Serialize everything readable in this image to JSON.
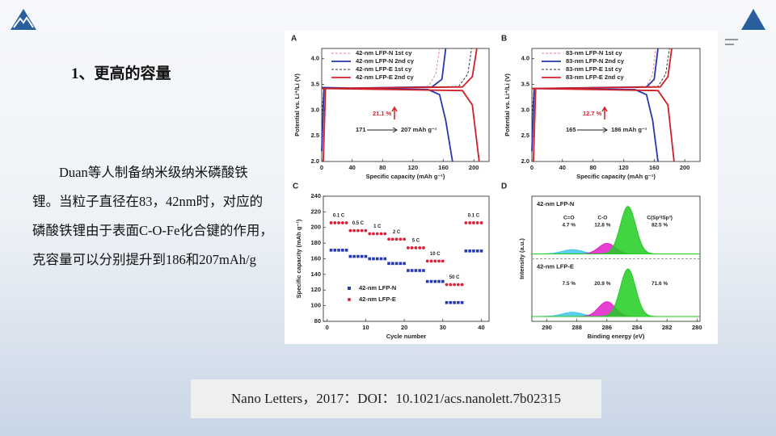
{
  "slide": {
    "title": "1、更高的容量",
    "body": "Duan等人制备纳米级纳米磷酸铁锂。当粒子直径在83，42nm时，对应的磷酸铁锂由于表面C-O-Fe化合键的作用，克容量可以分别提升到186和207mAh/g",
    "citation": "Nano Letters，2017：DOI：10.1021/acs.nanolett.7b02315"
  },
  "charts": [
    {
      "type": "line",
      "panel": "A",
      "xlabel": "Specific capacity (mAh g⁻¹)",
      "ylabel": "Potential vs. Li⁺/Li (V)",
      "xlim": [
        0,
        220
      ],
      "xticks": [
        0,
        40,
        80,
        120,
        160,
        200
      ],
      "ylim": [
        2.0,
        4.2
      ],
      "yticks": [
        {
          "value": 2,
          "label": "2.0"
        },
        2.5,
        {
          "value": 3,
          "label": "3.0"
        },
        3.5,
        {
          "value": 4,
          "label": "4.0"
        }
      ],
      "series": [
        {
          "name": "42-nm LFP-N 1st cy",
          "color": "#e8849c",
          "dashed": true,
          "x": [
            0,
            3,
            140,
            150,
            155
          ],
          "values": [
            2.9,
            3.42,
            3.46,
            3.7,
            4.2
          ]
        },
        {
          "name": "42-nm LFP-N 2nd cy",
          "color": "#2638b0",
          "dashed": false,
          "x": [
            0,
            3,
            145,
            158,
            163,
            null,
            0,
            140,
            155,
            163,
            172
          ],
          "values": [
            2.2,
            3.42,
            3.45,
            3.6,
            4.2,
            null,
            3.44,
            3.4,
            3.3,
            2.8,
            2.0
          ]
        },
        {
          "name": "42-nm LFP-E 1st cy",
          "color": "#333333",
          "dashed": true,
          "x": [
            0,
            3,
            180,
            192,
            197
          ],
          "values": [
            2.9,
            3.42,
            3.46,
            3.7,
            4.2
          ]
        },
        {
          "name": "42-nm LFP-E 2nd cy",
          "color": "#d0202a",
          "dashed": false,
          "x": [
            2,
            5,
            185,
            198,
            204,
            null,
            0,
            185,
            198,
            207
          ],
          "values": [
            2.0,
            3.42,
            3.45,
            3.65,
            4.2,
            null,
            3.42,
            3.38,
            3.1,
            2.0
          ]
        }
      ],
      "annotations": {
        "gain": "21.1 %",
        "from": "171",
        "to": "207 mAh g⁻¹"
      }
    },
    {
      "type": "line",
      "panel": "B",
      "xlabel": "Specific capacity (mAh g⁻¹)",
      "ylabel": "Potential vs. Li⁺/Li (V)",
      "xlim": [
        0,
        220
      ],
      "xticks": [
        0,
        40,
        80,
        120,
        160,
        200
      ],
      "ylim": [
        2.0,
        4.2
      ],
      "yticks": [
        {
          "value": 2,
          "label": "2.0"
        },
        2.5,
        {
          "value": 3,
          "label": "3.0"
        },
        3.5,
        {
          "value": 4,
          "label": "4.0"
        }
      ],
      "series": [
        {
          "name": "83-nm LFP-N 1st cy",
          "color": "#e8849c",
          "dashed": true,
          "x": [
            0,
            3,
            150,
            158,
            162
          ],
          "values": [
            2.9,
            3.42,
            3.46,
            3.7,
            4.2
          ]
        },
        {
          "name": "83-nm LFP-N 2nd cy",
          "color": "#2638b0",
          "dashed": false,
          "x": [
            0,
            3,
            150,
            160,
            165,
            null,
            0,
            135,
            150,
            158,
            165
          ],
          "values": [
            2.2,
            3.42,
            3.45,
            3.6,
            4.2,
            null,
            3.42,
            3.4,
            3.3,
            2.8,
            2.0
          ]
        },
        {
          "name": "83-nm LFP-E 1st cy",
          "color": "#333333",
          "dashed": true,
          "x": [
            0,
            3,
            165,
            175,
            180
          ],
          "values": [
            2.9,
            3.42,
            3.46,
            3.7,
            4.2
          ]
        },
        {
          "name": "83-nm LFP-E 2nd cy",
          "color": "#d0202a",
          "dashed": false,
          "x": [
            2,
            5,
            168,
            178,
            183,
            null,
            0,
            165,
            178,
            186
          ],
          "values": [
            2.0,
            3.42,
            3.45,
            3.65,
            4.2,
            null,
            3.42,
            3.38,
            3.1,
            2.0
          ]
        }
      ],
      "annotations": {
        "gain": "12.7 %",
        "from": "165",
        "to": "186 mAh g⁻¹"
      }
    },
    {
      "type": "scatter",
      "panel": "C",
      "xlabel": "Cycle number",
      "ylabel": "Specific capacity (mAh g⁻¹)",
      "xlim": [
        -1,
        42
      ],
      "xticks": [
        0,
        10,
        20,
        30,
        40
      ],
      "ylim": [
        80,
        240
      ],
      "yticks": [
        80,
        100,
        120,
        140,
        160,
        180,
        200,
        220,
        240
      ],
      "x": [
        1,
        2,
        3,
        4,
        5,
        6,
        7,
        8,
        9,
        10,
        11,
        12,
        13,
        14,
        15,
        16,
        17,
        18,
        19,
        20,
        21,
        22,
        23,
        24,
        25,
        26,
        27,
        28,
        29,
        30,
        31,
        32,
        33,
        34,
        35,
        36,
        37,
        38,
        39,
        40
      ],
      "series": [
        {
          "name": "42-nm LFP-N",
          "color": "#2638b0",
          "marker": "square",
          "values": [
            171,
            171,
            171,
            171,
            171,
            163,
            163,
            163,
            163,
            163,
            160,
            160,
            160,
            160,
            160,
            154,
            154,
            154,
            154,
            154,
            145,
            145,
            145,
            145,
            145,
            131,
            131,
            131,
            131,
            131,
            104,
            104,
            104,
            104,
            104,
            170,
            170,
            170,
            170,
            170
          ]
        },
        {
          "name": "42-nm LFP-E",
          "color": "#e0203a",
          "marker": "circle",
          "values": [
            206,
            206,
            206,
            206,
            206,
            196,
            196,
            196,
            196,
            196,
            192,
            192,
            192,
            192,
            192,
            185,
            185,
            185,
            185,
            185,
            174,
            174,
            174,
            174,
            174,
            157,
            157,
            157,
            157,
            157,
            127,
            127,
            127,
            127,
            127,
            206,
            206,
            206,
            206,
            206
          ]
        }
      ],
      "rate_labels": [
        "0.1 C",
        "0.5 C",
        "1 C",
        "2 C",
        "5 C",
        "10 C",
        "50 C",
        "0.1 C"
      ]
    },
    {
      "type": "spectrum",
      "panel": "D",
      "xlabel": "Binding energy (eV)",
      "ylabel": "Intensity (a.u.)",
      "xlim": [
        291,
        279.8
      ],
      "xticks": [
        290,
        288,
        286,
        284,
        282,
        280
      ],
      "samples": [
        {
          "name": "42-nm LFP-N",
          "components": [
            {
              "name": "C=O",
              "share": "4.7 %",
              "color": "#3fc6e6",
              "center": 288.3,
              "height": 0.08,
              "fwhm": 1.6
            },
            {
              "name": "C-O",
              "share": "12.8 %",
              "color": "#e020c8",
              "center": 286.0,
              "height": 0.2,
              "fwhm": 1.3
            },
            {
              "name": "C(Sp²/Sp³)",
              "share": "82.5 %",
              "color": "#22cc22",
              "center": 284.6,
              "height": 0.9,
              "fwhm": 1.2
            }
          ]
        },
        {
          "name": "42-nm LFP-E",
          "components": [
            {
              "share": "7.5 %",
              "color": "#3fc6e6",
              "center": 288.3,
              "height": 0.08,
              "fwhm": 1.6
            },
            {
              "share": "20.9 %",
              "color": "#e020c8",
              "center": 286.0,
              "height": 0.28,
              "fwhm": 1.3
            },
            {
              "share": "71.6 %",
              "color": "#22cc22",
              "center": 284.6,
              "height": 0.9,
              "fwhm": 1.2
            }
          ]
        }
      ]
    }
  ]
}
